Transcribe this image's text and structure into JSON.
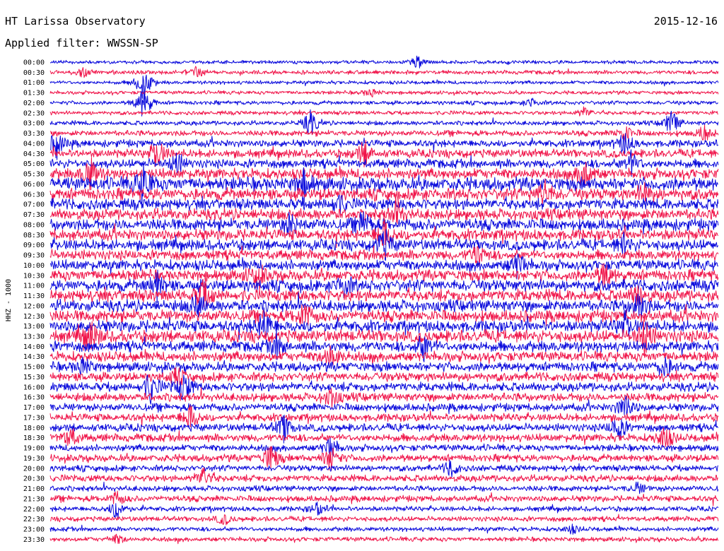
{
  "header": {
    "title": "HT Larissa Observatory",
    "date": "2015-12-16",
    "filter": "Applied filter: WWSSN-SP"
  },
  "chart_data": {
    "type": "line",
    "chart_kind": "helicorder",
    "ylabel": "HHZ - 1000",
    "colors": [
      "#0a0adc",
      "#f0154a"
    ],
    "rows": [
      {
        "label": "00:00",
        "activity": 0.1,
        "events": [
          {
            "t": 0.55,
            "a": 0.6
          }
        ]
      },
      {
        "label": "00:30",
        "activity": 0.15,
        "events": [
          {
            "t": 0.05,
            "a": 0.4
          },
          {
            "t": 0.22,
            "a": 0.6
          }
        ]
      },
      {
        "label": "01:00",
        "activity": 0.12,
        "events": [
          {
            "t": 0.14,
            "a": 1.8
          }
        ]
      },
      {
        "label": "01:30",
        "activity": 0.12,
        "events": [
          {
            "t": 0.48,
            "a": 0.4
          }
        ]
      },
      {
        "label": "02:00",
        "activity": 0.15,
        "events": [
          {
            "t": 0.14,
            "a": 1.6
          },
          {
            "t": 0.72,
            "a": 0.4
          }
        ]
      },
      {
        "label": "02:30",
        "activity": 0.15,
        "events": [
          {
            "t": 0.8,
            "a": 0.5
          }
        ]
      },
      {
        "label": "03:00",
        "activity": 0.2,
        "events": [
          {
            "t": 0.39,
            "a": 1.2
          },
          {
            "t": 0.93,
            "a": 1.2
          }
        ]
      },
      {
        "label": "03:30",
        "activity": 0.3,
        "events": [
          {
            "t": 0.86,
            "a": 0.8
          },
          {
            "t": 0.98,
            "a": 0.8
          }
        ]
      },
      {
        "label": "04:00",
        "activity": 0.45,
        "events": [
          {
            "t": 0.01,
            "a": 1.2
          },
          {
            "t": 0.86,
            "a": 1.0
          }
        ]
      },
      {
        "label": "04:30",
        "activity": 0.55,
        "events": [
          {
            "t": 0.16,
            "a": 1.4
          },
          {
            "t": 0.47,
            "a": 1.2
          }
        ]
      },
      {
        "label": "05:00",
        "activity": 0.6,
        "events": [
          {
            "t": 0.19,
            "a": 1.0
          },
          {
            "t": 0.87,
            "a": 1.0
          }
        ]
      },
      {
        "label": "05:30",
        "activity": 0.75,
        "events": [
          {
            "t": 0.06,
            "a": 1.4
          },
          {
            "t": 0.8,
            "a": 1.5
          }
        ]
      },
      {
        "label": "06:00",
        "activity": 1.0,
        "events": [
          {
            "t": 0.14,
            "a": 1.8
          },
          {
            "t": 0.38,
            "a": 1.4
          }
        ]
      },
      {
        "label": "06:30",
        "activity": 0.85,
        "events": [
          {
            "t": 0.74,
            "a": 1.2
          },
          {
            "t": 0.89,
            "a": 1.0
          }
        ]
      },
      {
        "label": "07:00",
        "activity": 0.8,
        "events": [
          {
            "t": 0.43,
            "a": 1.0
          }
        ]
      },
      {
        "label": "07:30",
        "activity": 0.8,
        "events": [
          {
            "t": 0.52,
            "a": 1.0
          }
        ]
      },
      {
        "label": "08:00",
        "activity": 0.85,
        "events": [
          {
            "t": 0.36,
            "a": 1.0
          },
          {
            "t": 0.47,
            "a": 1.2
          }
        ]
      },
      {
        "label": "08:30",
        "activity": 0.8,
        "events": [
          {
            "t": 0.5,
            "a": 1.4
          }
        ]
      },
      {
        "label": "09:00",
        "activity": 0.8,
        "events": [
          {
            "t": 0.5,
            "a": 1.4
          },
          {
            "t": 0.86,
            "a": 0.9
          }
        ]
      },
      {
        "label": "09:30",
        "activity": 0.7,
        "events": [
          {
            "t": 0.64,
            "a": 1.0
          }
        ]
      },
      {
        "label": "10:00",
        "activity": 0.75,
        "events": [
          {
            "t": 0.7,
            "a": 1.2
          }
        ]
      },
      {
        "label": "10:30",
        "activity": 0.8,
        "events": [
          {
            "t": 0.31,
            "a": 1.2
          },
          {
            "t": 0.83,
            "a": 1.2
          }
        ]
      },
      {
        "label": "11:00",
        "activity": 0.85,
        "events": [
          {
            "t": 0.16,
            "a": 1.2
          },
          {
            "t": 0.44,
            "a": 1.0
          }
        ]
      },
      {
        "label": "11:30",
        "activity": 0.85,
        "events": [
          {
            "t": 0.23,
            "a": 1.4
          },
          {
            "t": 0.88,
            "a": 1.0
          }
        ]
      },
      {
        "label": "12:00",
        "activity": 0.85,
        "events": [
          {
            "t": 0.22,
            "a": 1.0
          },
          {
            "t": 0.88,
            "a": 1.4
          }
        ]
      },
      {
        "label": "12:30",
        "activity": 0.85,
        "events": [
          {
            "t": 0.38,
            "a": 1.2
          }
        ]
      },
      {
        "label": "13:00",
        "activity": 0.85,
        "events": [
          {
            "t": 0.32,
            "a": 1.4
          },
          {
            "t": 0.86,
            "a": 1.2
          }
        ]
      },
      {
        "label": "13:30",
        "activity": 0.9,
        "events": [
          {
            "t": 0.06,
            "a": 1.6
          },
          {
            "t": 0.89,
            "a": 1.6
          }
        ]
      },
      {
        "label": "14:00",
        "activity": 0.75,
        "events": [
          {
            "t": 0.34,
            "a": 1.0
          },
          {
            "t": 0.56,
            "a": 1.2
          }
        ]
      },
      {
        "label": "14:30",
        "activity": 0.7,
        "events": [
          {
            "t": 0.42,
            "a": 1.0
          }
        ]
      },
      {
        "label": "15:00",
        "activity": 0.65,
        "events": [
          {
            "t": 0.05,
            "a": 0.8
          },
          {
            "t": 0.92,
            "a": 1.0
          }
        ]
      },
      {
        "label": "15:30",
        "activity": 0.6,
        "events": [
          {
            "t": 0.19,
            "a": 0.8
          }
        ]
      },
      {
        "label": "16:00",
        "activity": 0.6,
        "events": [
          {
            "t": 0.15,
            "a": 1.4
          },
          {
            "t": 0.2,
            "a": 1.4
          }
        ]
      },
      {
        "label": "16:30",
        "activity": 0.55,
        "events": [
          {
            "t": 0.42,
            "a": 1.0
          }
        ]
      },
      {
        "label": "17:00",
        "activity": 0.5,
        "events": [
          {
            "t": 0.86,
            "a": 1.2
          }
        ]
      },
      {
        "label": "17:30",
        "activity": 0.5,
        "events": [
          {
            "t": 0.21,
            "a": 1.2
          }
        ]
      },
      {
        "label": "18:00",
        "activity": 0.5,
        "events": [
          {
            "t": 0.35,
            "a": 1.2
          },
          {
            "t": 0.85,
            "a": 1.2
          }
        ]
      },
      {
        "label": "18:30",
        "activity": 0.5,
        "events": [
          {
            "t": 0.03,
            "a": 1.0
          },
          {
            "t": 0.92,
            "a": 1.2
          }
        ]
      },
      {
        "label": "19:00",
        "activity": 0.4,
        "events": [
          {
            "t": 0.42,
            "a": 1.0
          }
        ]
      },
      {
        "label": "19:30",
        "activity": 0.45,
        "events": [
          {
            "t": 0.33,
            "a": 1.4
          },
          {
            "t": 0.42,
            "a": 1.2
          }
        ]
      },
      {
        "label": "20:00",
        "activity": 0.35,
        "events": [
          {
            "t": 0.6,
            "a": 0.8
          }
        ]
      },
      {
        "label": "20:30",
        "activity": 0.4,
        "events": [
          {
            "t": 0.23,
            "a": 1.0
          }
        ]
      },
      {
        "label": "21:00",
        "activity": 0.3,
        "events": [
          {
            "t": 0.88,
            "a": 0.5
          }
        ]
      },
      {
        "label": "21:30",
        "activity": 0.35,
        "events": [
          {
            "t": 0.1,
            "a": 0.6
          }
        ]
      },
      {
        "label": "22:00",
        "activity": 0.25,
        "events": [
          {
            "t": 0.1,
            "a": 1.0
          },
          {
            "t": 0.4,
            "a": 0.6
          }
        ]
      },
      {
        "label": "22:30",
        "activity": 0.25,
        "events": [
          {
            "t": 0.26,
            "a": 0.5
          }
        ]
      },
      {
        "label": "23:00",
        "activity": 0.2,
        "events": [
          {
            "t": 0.78,
            "a": 0.4
          }
        ]
      },
      {
        "label": "23:30",
        "activity": 0.2,
        "events": [
          {
            "t": 0.1,
            "a": 0.4
          }
        ]
      }
    ]
  }
}
